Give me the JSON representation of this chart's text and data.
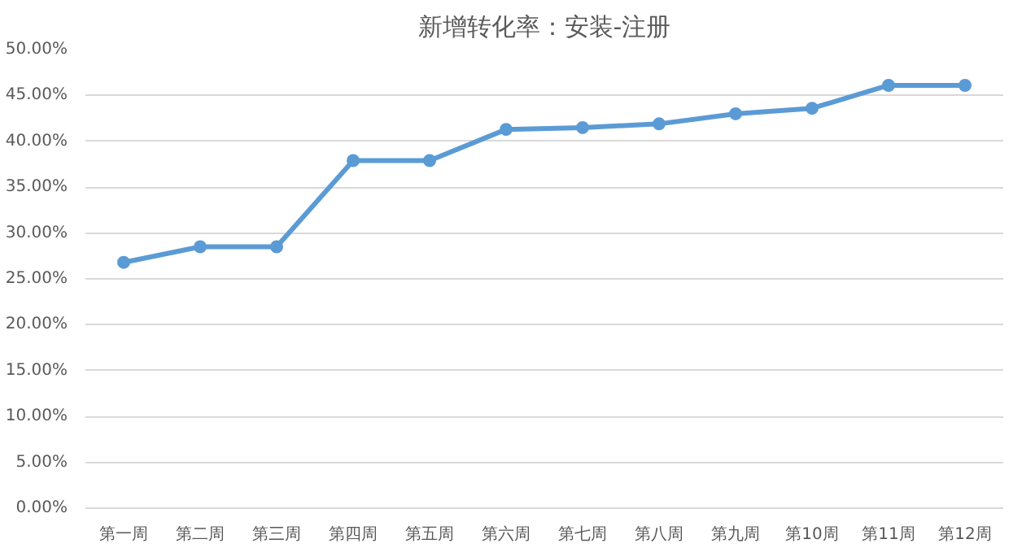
{
  "chart_data": {
    "type": "line",
    "title": "新增转化率：安装-注册",
    "categories": [
      "第一周",
      "第二周",
      "第三周",
      "第四周",
      "第五周",
      "第六周",
      "第七周",
      "第八周",
      "第九周",
      "第10周",
      "第11周",
      "第12周"
    ],
    "series": [
      {
        "color": "#5b9bd5",
        "values": [
          26.8,
          28.5,
          28.5,
          37.9,
          37.9,
          41.3,
          41.5,
          41.9,
          43.0,
          43.6,
          46.1,
          46.1
        ]
      }
    ],
    "ylim": [
      0,
      50
    ],
    "yticks": [
      {
        "value": 0,
        "label": "0.00%"
      },
      {
        "value": 5,
        "label": "5.00%"
      },
      {
        "value": 10,
        "label": "10.00%"
      },
      {
        "value": 15,
        "label": "15.00%"
      },
      {
        "value": 20,
        "label": "20.00%"
      },
      {
        "value": 25,
        "label": "25.00%"
      },
      {
        "value": 30,
        "label": "30.00%"
      },
      {
        "value": 35,
        "label": "35.00%"
      },
      {
        "value": 40,
        "label": "40.00%"
      },
      {
        "value": 45,
        "label": "45.00%"
      },
      {
        "value": 50,
        "label": "50.00%"
      }
    ],
    "grid": "y",
    "marker": "circle",
    "line_style": "solid"
  }
}
